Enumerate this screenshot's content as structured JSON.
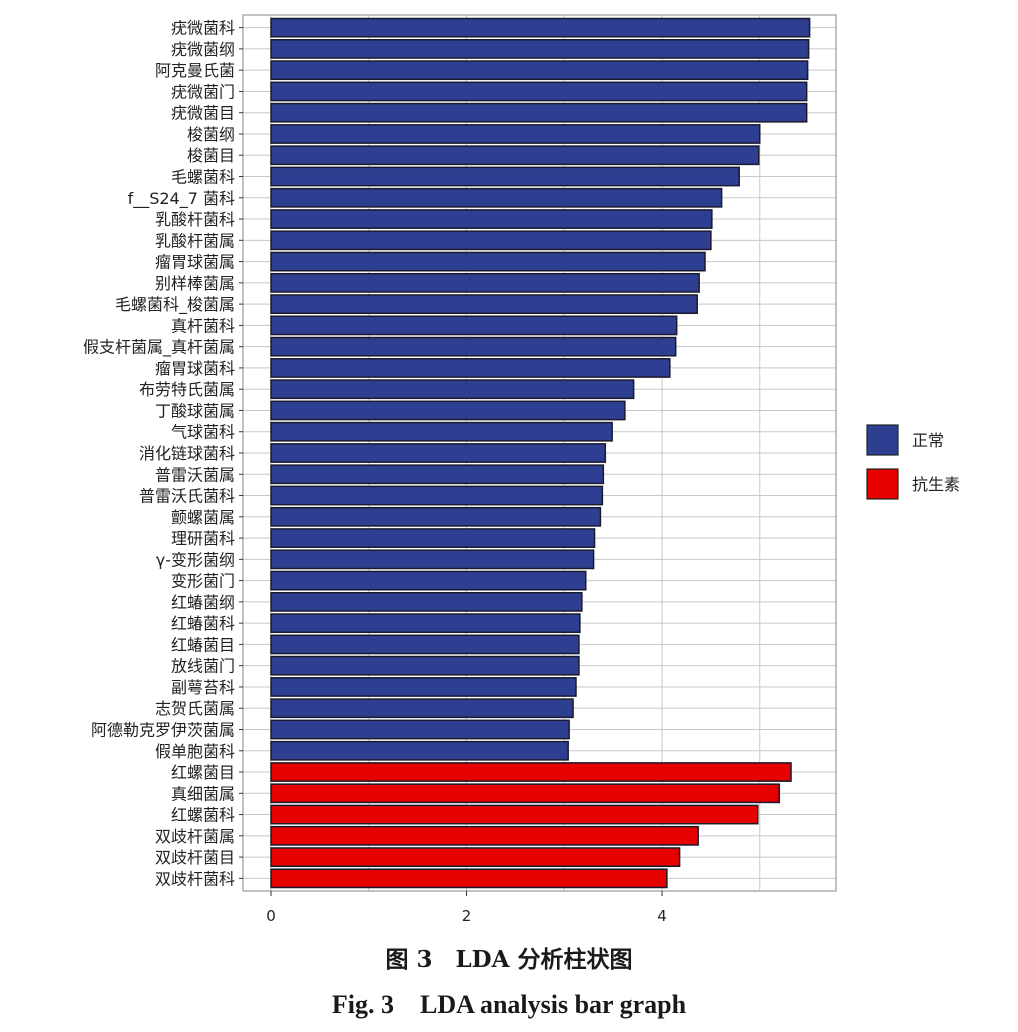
{
  "chart_data": {
    "type": "bar",
    "orientation": "horizontal",
    "title": "",
    "xlabel": "",
    "ylabel": "",
    "xlim": [
      -0.28,
      5.78
    ],
    "xticks": [
      0,
      2,
      4
    ],
    "grid": true,
    "legend_position": "right",
    "colors": {
      "正常": "#2e3f91",
      "抗生素": "#e60000"
    },
    "categories": [
      "疣微菌科",
      "疣微菌纲",
      "阿克曼氏菌",
      "疣微菌门",
      "疣微菌目",
      "梭菌纲",
      "梭菌目",
      "毛螺菌科",
      "f__S24_7 菌科",
      "乳酸杆菌科",
      "乳酸杆菌属",
      "瘤胃球菌属",
      "别样棒菌属",
      "毛螺菌科_梭菌属",
      "真杆菌科",
      "假支杆菌属_真杆菌属",
      "瘤胃球菌科",
      "布劳特氏菌属",
      "丁酸球菌属",
      "气球菌科",
      "消化链球菌科",
      "普雷沃菌属",
      "普雷沃氏菌科",
      "颤螺菌属",
      "理研菌科",
      "γ-变形菌纲",
      "变形菌门",
      "红蝽菌纲",
      "红蝽菌科",
      "红蝽菌目",
      "放线菌门",
      "副萼苔科",
      "志贺氏菌属",
      "阿德勒克罗伊茨菌属",
      "假单胞菌科",
      "红螺菌目",
      "真细菌属",
      "红螺菌科",
      "双歧杆菌属",
      "双歧杆菌目",
      "双歧杆菌科"
    ],
    "values": [
      5.51,
      5.5,
      5.49,
      5.48,
      5.48,
      5.0,
      4.99,
      4.79,
      4.61,
      4.51,
      4.5,
      4.44,
      4.38,
      4.36,
      4.15,
      4.14,
      4.08,
      3.71,
      3.62,
      3.49,
      3.42,
      3.4,
      3.39,
      3.37,
      3.31,
      3.3,
      3.22,
      3.18,
      3.16,
      3.15,
      3.15,
      3.12,
      3.09,
      3.05,
      3.04,
      5.32,
      5.2,
      4.98,
      4.37,
      4.18,
      4.05
    ],
    "groups": [
      "正常",
      "正常",
      "正常",
      "正常",
      "正常",
      "正常",
      "正常",
      "正常",
      "正常",
      "正常",
      "正常",
      "正常",
      "正常",
      "正常",
      "正常",
      "正常",
      "正常",
      "正常",
      "正常",
      "正常",
      "正常",
      "正常",
      "正常",
      "正常",
      "正常",
      "正常",
      "正常",
      "正常",
      "正常",
      "正常",
      "正常",
      "正常",
      "正常",
      "正常",
      "正常",
      "抗生素",
      "抗生素",
      "抗生素",
      "抗生素",
      "抗生素",
      "抗生素"
    ],
    "legend": [
      {
        "label": "正常",
        "color": "#2e3f91"
      },
      {
        "label": "抗生素",
        "color": "#e60000"
      }
    ]
  },
  "caption": {
    "cn": "图 3　LDA 分析柱状图",
    "en": "Fig. 3　LDA analysis bar graph"
  }
}
